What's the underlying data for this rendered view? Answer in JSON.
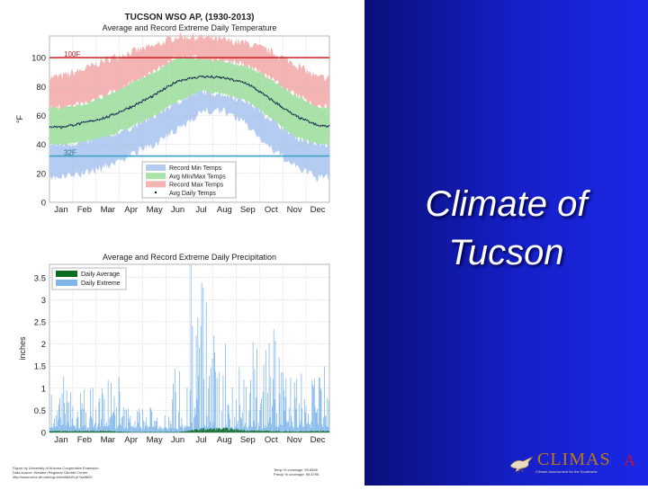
{
  "slide": {
    "title": "Climate of Tucson"
  },
  "footer": {
    "credits": [
      "Figure by University of Arizona Cooperative Extension",
      "Data source: Western Regional Climate Center",
      "http://www.wrcc.dri.edu/cgi-bin/cliMAIN.pl?az8820"
    ],
    "stats": [
      "Temp % coverage: 99.8396",
      "Precip % coverage: 99.8795"
    ]
  },
  "logo": {
    "name": "CLIMAS",
    "tagline": "Climate Assessment for the Southwest",
    "mark": "A"
  },
  "colors": {
    "record_min": "#b4ccf2",
    "avg_minmax": "#a8e2a8",
    "record_max": "#f4b4b4",
    "avg_line": "#0a1a4a",
    "line_100f": "#cc1f1f",
    "line_32f": "#3aa0c8",
    "precip_average": "#0b6b1e",
    "precip_extreme": "#7fb6ea",
    "background_right": "#1520c8"
  },
  "chart_data": [
    {
      "type": "area",
      "title": "TUCSON WSO AP, (1930-2013)",
      "subtitle": "Average and Record Extreme Daily Temperature",
      "ylabel": "°F",
      "xlabel": "",
      "ylim": [
        0,
        115
      ],
      "yticks": [
        0,
        20,
        40,
        60,
        80,
        100
      ],
      "categories": [
        "Jan",
        "Feb",
        "Mar",
        "Apr",
        "May",
        "Jun",
        "Jul",
        "Aug",
        "Sep",
        "Oct",
        "Nov",
        "Dec"
      ],
      "grid": true,
      "legend_position": "bottom-center",
      "reference_lines": [
        {
          "label": "100F",
          "value": 100
        },
        {
          "label": "32F",
          "value": 32
        }
      ],
      "series": [
        {
          "name": "Record Min Temps",
          "values": [
            17,
            20,
            25,
            33,
            40,
            50,
            63,
            63,
            53,
            37,
            25,
            17
          ]
        },
        {
          "name": "Avg Min/Max Temps",
          "low": [
            40,
            42,
            46,
            52,
            60,
            70,
            77,
            75,
            70,
            58,
            46,
            40
          ],
          "high": [
            65,
            68,
            74,
            82,
            90,
            100,
            99,
            97,
            94,
            85,
            74,
            66
          ]
        },
        {
          "name": "Record Max Temps",
          "values": [
            87,
            92,
            99,
            104,
            108,
            115,
            114,
            112,
            110,
            104,
            96,
            86
          ]
        },
        {
          "name": "Avg Daily Temps",
          "values": [
            52,
            55,
            59,
            66,
            74,
            84,
            87,
            86,
            82,
            71,
            60,
            53
          ]
        }
      ]
    },
    {
      "type": "bar",
      "title": "Average and Record Extreme Daily Precipitation",
      "ylabel": "inches",
      "xlabel": "",
      "ylim": [
        0,
        3.8
      ],
      "yticks": [
        0,
        0.5,
        1,
        1.5,
        2,
        2.5,
        3,
        3.5
      ],
      "ytick_labels": [
        "0",
        "0.5",
        "1",
        "1.5",
        "2",
        "2.5",
        "3",
        "3.5"
      ],
      "categories": [
        "Jan",
        "Feb",
        "Mar",
        "Apr",
        "May",
        "Jun",
        "Jul",
        "Aug",
        "Sep",
        "Oct",
        "Nov",
        "Dec"
      ],
      "grid": true,
      "legend_position": "top-left",
      "series": [
        {
          "name": "Daily Average",
          "values": [
            0.03,
            0.03,
            0.03,
            0.01,
            0.01,
            0.01,
            0.07,
            0.08,
            0.04,
            0.03,
            0.02,
            0.03
          ]
        },
        {
          "name": "Daily Extreme",
          "values": [
            1.2,
            1.05,
            1.5,
            0.6,
            0.5,
            1.5,
            3.9,
            2.3,
            2.2,
            2.6,
            1.4,
            1.55
          ]
        }
      ]
    }
  ]
}
